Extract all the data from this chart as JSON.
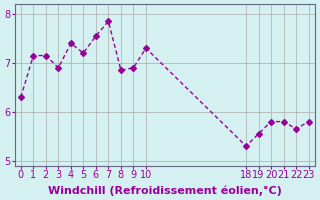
{
  "x": [
    0,
    1,
    2,
    3,
    4,
    5,
    6,
    7,
    8,
    9,
    10,
    18,
    19,
    20,
    21,
    22,
    23
  ],
  "y": [
    6.3,
    7.15,
    7.15,
    6.9,
    7.4,
    7.2,
    7.55,
    7.85,
    6.85,
    6.9,
    7.3,
    5.3,
    5.55,
    5.8,
    5.8,
    5.65,
    5.8
  ],
  "line_color": "#990099",
  "marker": "D",
  "marker_size": 3,
  "bg_color": "#d5f0f0",
  "grid_color": "#aaaaaa",
  "xlabel": "Windchill (Refroidissement éolien,°C)",
  "xlabel_color": "#990099",
  "xlabel_fontsize": 8,
  "tick_color": "#990099",
  "tick_fontsize": 7,
  "ylim": [
    4.9,
    8.2
  ],
  "yticks": [
    5,
    6,
    7,
    8
  ],
  "xticks": [
    0,
    1,
    2,
    3,
    4,
    5,
    6,
    7,
    8,
    9,
    10,
    18,
    19,
    20,
    21,
    22,
    23
  ],
  "xtick_labels": [
    "0",
    "1",
    "2",
    "3",
    "4",
    "5",
    "6",
    "7",
    "8",
    "9",
    "10",
    "18",
    "19",
    "20",
    "21",
    "22",
    "23"
  ]
}
